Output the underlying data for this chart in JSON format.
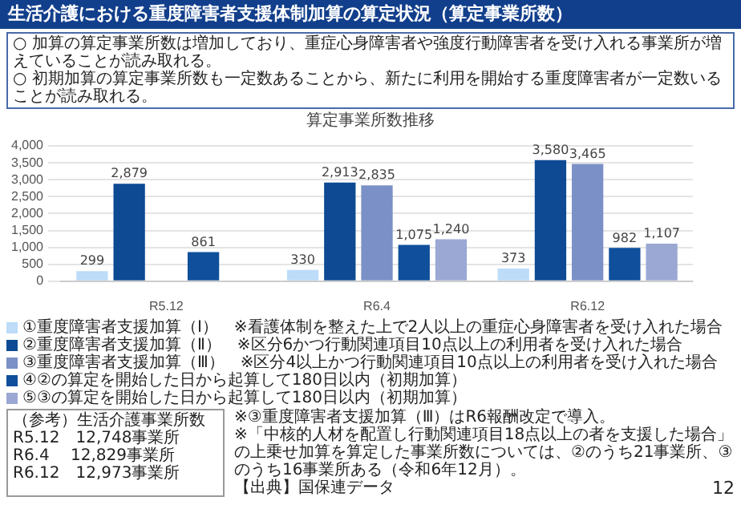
{
  "chart_data": {
    "type": "bar",
    "title": "生活介護における重度障害者支援体制加算の算定状況（算定事業所数）",
    "subtitle": "○ 加算の算定事業所数は増加しており、重症心身障害者や強度行動障害者を受け入れる事業所が増えていることが読み取れる。\n○ 初期加算の算定事業所数も一定数あることから、新たに利用を開始する重度障害者が一定数いることが読み取れる。",
    "xlabel": "算定事業所数推移",
    "categories": [
      "R5.12",
      "R6.4",
      "R6.12"
    ],
    "series": [
      {
        "name": "①重度障害者支援加算（Ⅰ）　※看護体制を整えた上で2人以上の重症心身障害者を受け入れた場合",
        "color": "#bcdcf8",
        "values": [
          299,
          330,
          373
        ],
        "value_labels": [
          "299",
          "330",
          "373"
        ]
      },
      {
        "name": "②重度障害者支援加算（Ⅱ）　※区分6かつ行動関連項目10点以上の利用者を受け入れた場合",
        "color": "#0d4a93",
        "values": [
          2879,
          2913,
          3580
        ],
        "value_labels": [
          "2,879",
          "2,913",
          "3,580"
        ]
      },
      {
        "name": "③重度障害者支援加算（Ⅲ）　※区分4以上かつ行動関連項目10点以上の利用者を受け入れた場合",
        "color": "#7b90c6",
        "values": [
          null,
          2835,
          3465
        ],
        "value_labels": [
          null,
          "2,835",
          "3,465"
        ]
      },
      {
        "name": "④②の算定を開始した日から起算して180日以内（初期加算）",
        "color": "#0f4f9c",
        "values": [
          861,
          1075,
          982
        ],
        "value_labels": [
          "861",
          "1,075",
          "982"
        ]
      },
      {
        "name": "⑤③の算定を開始した日から起算して180日以内（初期加算）",
        "color": "#9aa8d3",
        "values": [
          null,
          1240,
          1107
        ],
        "value_labels": [
          null,
          "1,240",
          "1,107"
        ]
      }
    ],
    "ylim": [
      0,
      4000
    ],
    "yticks": [
      0,
      500,
      {
        "value": 1000,
        "label": "1,000"
      },
      {
        "value": 1500,
        "label": "1,500"
      },
      {
        "value": 2000,
        "label": "2,000"
      },
      {
        "value": 2500,
        "label": "2,500"
      },
      {
        "value": 3000,
        "label": "3,000"
      },
      {
        "value": 3500,
        "label": "3,500"
      },
      {
        "value": 4000,
        "label": "4,000"
      }
    ],
    "grid": "y",
    "legend": "bottom",
    "annotations": [
      "（参考）生活介護事業所数",
      "R5.12　12,748事業所",
      "R6.4　 12,829事業所",
      "R6.12　12,973事業所",
      "※③重度障害者支援加算（Ⅲ）はR6報酬改定で導入。",
      "※「中核的人材を配置し行動関連項目18点以上の者を支援した場合」の上乗せ加算を算定した事業所数については、②のうち21事業所、③のうち16事業所ある（令和6年12月）。",
      "【出典】国保連データ",
      "12"
    ]
  }
}
